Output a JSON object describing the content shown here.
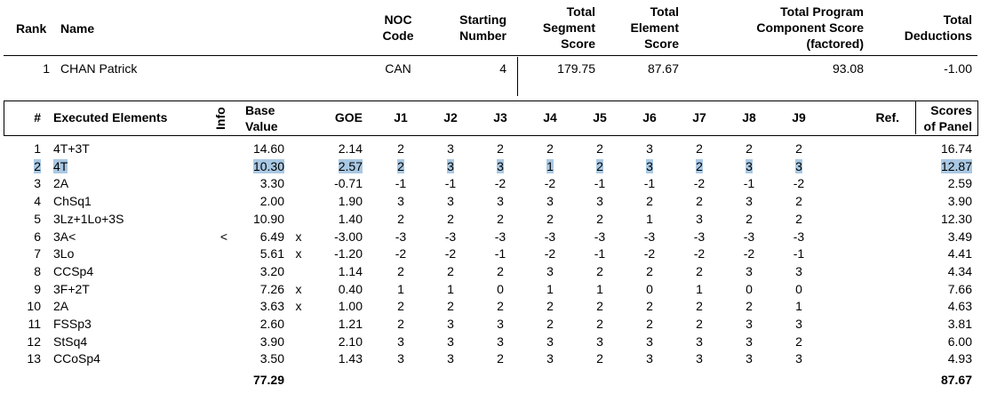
{
  "header": {
    "rank": "Rank",
    "name": "Name",
    "noc_line1": "NOC",
    "noc_line2": "Code",
    "start_line1": "Starting",
    "start_line2": "Number",
    "tss_line1": "Total",
    "tss_line2": "Segment",
    "tss_line3": "Score",
    "tes_line1": "Total",
    "tes_line2": "Element",
    "tes_line3": "Score",
    "pcs_line1": "Total Program",
    "pcs_line2": "Component Score",
    "pcs_line3": "(factored)",
    "ded_line1": "Total",
    "ded_line2": "Deductions"
  },
  "skater": {
    "rank": "1",
    "name": "CHAN Patrick",
    "noc": "CAN",
    "start": "4",
    "tss": "179.75",
    "tes": "87.67",
    "pcs": "93.08",
    "ded": "-1.00"
  },
  "elements_header": {
    "num": "#",
    "executed": "Executed Elements",
    "info": "Info",
    "base_line1": "Base",
    "base_line2": "Value",
    "goe": "GOE",
    "judges": [
      "J1",
      "J2",
      "J3",
      "J4",
      "J5",
      "J6",
      "J7",
      "J8",
      "J9"
    ],
    "ref": "Ref.",
    "panel_line1": "Scores",
    "panel_line2": "of Panel"
  },
  "elements": [
    {
      "num": "1",
      "name": "4T+3T",
      "info": "",
      "base": "14.60",
      "x": "",
      "goe": "2.14",
      "j": [
        "2",
        "3",
        "2",
        "2",
        "2",
        "3",
        "2",
        "2",
        "2"
      ],
      "panel": "16.74",
      "highlight": false
    },
    {
      "num": "2",
      "name": "4T",
      "info": "",
      "base": "10.30",
      "x": "",
      "goe": "2.57",
      "j": [
        "2",
        "3",
        "3",
        "1",
        "2",
        "3",
        "2",
        "3",
        "3"
      ],
      "panel": "12.87",
      "highlight": true
    },
    {
      "num": "3",
      "name": "2A",
      "info": "",
      "base": "3.30",
      "x": "",
      "goe": "-0.71",
      "j": [
        "-1",
        "-1",
        "-2",
        "-2",
        "-1",
        "-1",
        "-2",
        "-1",
        "-2"
      ],
      "panel": "2.59",
      "highlight": false
    },
    {
      "num": "4",
      "name": "ChSq1",
      "info": "",
      "base": "2.00",
      "x": "",
      "goe": "1.90",
      "j": [
        "3",
        "3",
        "3",
        "3",
        "3",
        "2",
        "2",
        "3",
        "2"
      ],
      "panel": "3.90",
      "highlight": false
    },
    {
      "num": "5",
      "name": "3Lz+1Lo+3S",
      "info": "",
      "base": "10.90",
      "x": "",
      "goe": "1.40",
      "j": [
        "2",
        "2",
        "2",
        "2",
        "2",
        "1",
        "3",
        "2",
        "2"
      ],
      "panel": "12.30",
      "highlight": false
    },
    {
      "num": "6",
      "name": "3A<",
      "info": "<",
      "base": "6.49",
      "x": "x",
      "goe": "-3.00",
      "j": [
        "-3",
        "-3",
        "-3",
        "-3",
        "-3",
        "-3",
        "-3",
        "-3",
        "-3"
      ],
      "panel": "3.49",
      "highlight": false
    },
    {
      "num": "7",
      "name": "3Lo",
      "info": "",
      "base": "5.61",
      "x": "x",
      "goe": "-1.20",
      "j": [
        "-2",
        "-2",
        "-1",
        "-2",
        "-1",
        "-2",
        "-2",
        "-2",
        "-1"
      ],
      "panel": "4.41",
      "highlight": false
    },
    {
      "num": "8",
      "name": "CCSp4",
      "info": "",
      "base": "3.20",
      "x": "",
      "goe": "1.14",
      "j": [
        "2",
        "2",
        "2",
        "3",
        "2",
        "2",
        "2",
        "3",
        "3"
      ],
      "panel": "4.34",
      "highlight": false
    },
    {
      "num": "9",
      "name": "3F+2T",
      "info": "",
      "base": "7.26",
      "x": "x",
      "goe": "0.40",
      "j": [
        "1",
        "1",
        "0",
        "1",
        "1",
        "0",
        "1",
        "0",
        "0"
      ],
      "panel": "7.66",
      "highlight": false
    },
    {
      "num": "10",
      "name": "2A",
      "info": "",
      "base": "3.63",
      "x": "x",
      "goe": "1.00",
      "j": [
        "2",
        "2",
        "2",
        "2",
        "2",
        "2",
        "2",
        "2",
        "1"
      ],
      "panel": "4.63",
      "highlight": false
    },
    {
      "num": "11",
      "name": "FSSp3",
      "info": "",
      "base": "2.60",
      "x": "",
      "goe": "1.21",
      "j": [
        "2",
        "3",
        "3",
        "2",
        "2",
        "2",
        "2",
        "3",
        "3"
      ],
      "panel": "3.81",
      "highlight": false
    },
    {
      "num": "12",
      "name": "StSq4",
      "info": "",
      "base": "3.90",
      "x": "",
      "goe": "2.10",
      "j": [
        "3",
        "3",
        "3",
        "3",
        "3",
        "3",
        "3",
        "3",
        "2"
      ],
      "panel": "6.00",
      "highlight": false
    },
    {
      "num": "13",
      "name": "CCoSp4",
      "info": "",
      "base": "3.50",
      "x": "",
      "goe": "1.43",
      "j": [
        "3",
        "3",
        "2",
        "3",
        "2",
        "3",
        "3",
        "3",
        "3"
      ],
      "panel": "4.93",
      "highlight": false
    }
  ],
  "totals": {
    "base": "77.29",
    "panel": "87.67"
  }
}
